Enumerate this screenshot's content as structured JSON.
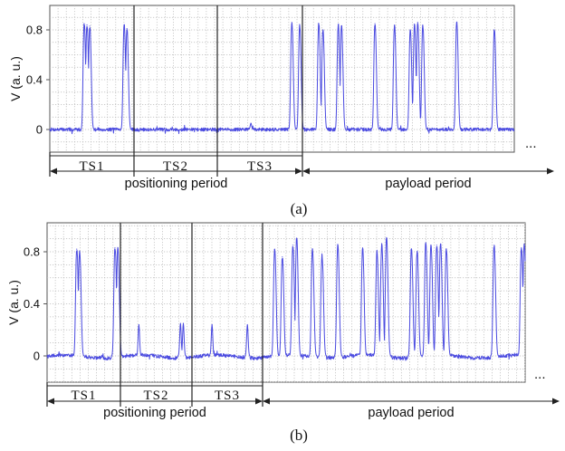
{
  "chart_data": [
    {
      "type": "line",
      "caption": "(a)",
      "ylabel": "V (a. u.)",
      "yticks": [
        "0.8",
        "0.4",
        "0"
      ],
      "ylim": [
        -0.08,
        0.98
      ],
      "grid": true,
      "line_color": "#4a4ae0",
      "continuation": "...",
      "timeslots": [
        "TS1",
        "TS2",
        "TS3"
      ],
      "positioning_label": "positioning period",
      "payload_label": "payload period",
      "x_units": "fraction of recorded window",
      "pulses": [
        {
          "x": 0.074,
          "peak": 0.85
        },
        {
          "x": 0.08,
          "peak": 0.84
        },
        {
          "x": 0.086,
          "peak": 0.83
        },
        {
          "x": 0.16,
          "peak": 0.84
        },
        {
          "x": 0.166,
          "peak": 0.81
        },
        {
          "x": 0.521,
          "peak": 0.86
        },
        {
          "x": 0.538,
          "peak": 0.83
        },
        {
          "x": 0.579,
          "peak": 0.85
        },
        {
          "x": 0.588,
          "peak": 0.8
        },
        {
          "x": 0.621,
          "peak": 0.84
        },
        {
          "x": 0.628,
          "peak": 0.83
        },
        {
          "x": 0.7,
          "peak": 0.85
        },
        {
          "x": 0.742,
          "peak": 0.83
        },
        {
          "x": 0.776,
          "peak": 0.8
        },
        {
          "x": 0.785,
          "peak": 0.84
        },
        {
          "x": 0.792,
          "peak": 0.86
        },
        {
          "x": 0.803,
          "peak": 0.83
        },
        {
          "x": 0.876,
          "peak": 0.86
        },
        {
          "x": 0.957,
          "peak": 0.8
        }
      ],
      "bumps": [
        {
          "x": 0.433,
          "peak": 0.05
        }
      ]
    },
    {
      "type": "line",
      "caption": "(b)",
      "ylabel": "V (a. u.)",
      "yticks": [
        "0.8",
        "0.4",
        "0"
      ],
      "ylim": [
        -0.08,
        0.98
      ],
      "grid": true,
      "line_color": "#4a4ae0",
      "continuation": "...",
      "timeslots": [
        "TS1",
        "TS2",
        "TS3"
      ],
      "positioning_label": "positioning period",
      "payload_label": "payload period",
      "x_units": "fraction of recorded window",
      "pulses": [
        {
          "x": 0.062,
          "peak": 0.82
        },
        {
          "x": 0.068,
          "peak": 0.8
        },
        {
          "x": 0.142,
          "peak": 0.83
        },
        {
          "x": 0.148,
          "peak": 0.83
        },
        {
          "x": 0.476,
          "peak": 0.82
        },
        {
          "x": 0.492,
          "peak": 0.76
        },
        {
          "x": 0.514,
          "peak": 0.85
        },
        {
          "x": 0.522,
          "peak": 0.9
        },
        {
          "x": 0.555,
          "peak": 0.82
        },
        {
          "x": 0.575,
          "peak": 0.77
        },
        {
          "x": 0.608,
          "peak": 0.85
        },
        {
          "x": 0.66,
          "peak": 0.82
        },
        {
          "x": 0.69,
          "peak": 0.8
        },
        {
          "x": 0.7,
          "peak": 0.85
        },
        {
          "x": 0.71,
          "peak": 0.9
        },
        {
          "x": 0.762,
          "peak": 0.82
        },
        {
          "x": 0.774,
          "peak": 0.8
        },
        {
          "x": 0.792,
          "peak": 0.87
        },
        {
          "x": 0.803,
          "peak": 0.85
        },
        {
          "x": 0.815,
          "peak": 0.85
        },
        {
          "x": 0.823,
          "peak": 0.86
        },
        {
          "x": 0.835,
          "peak": 0.82
        },
        {
          "x": 0.935,
          "peak": 0.85
        },
        {
          "x": 0.992,
          "peak": 0.83
        },
        {
          "x": 0.998,
          "peak": 0.86
        }
      ],
      "bumps": [
        {
          "x": 0.192,
          "peak": 0.24
        },
        {
          "x": 0.279,
          "peak": 0.25
        },
        {
          "x": 0.285,
          "peak": 0.25
        },
        {
          "x": 0.345,
          "peak": 0.24
        },
        {
          "x": 0.419,
          "peak": 0.24
        }
      ]
    }
  ]
}
